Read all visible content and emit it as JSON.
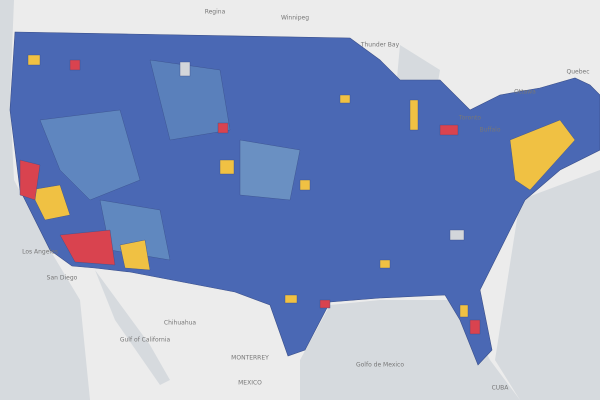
{
  "map": {
    "labels": [
      "Regina",
      "Winnipeg",
      "Thunder Bay",
      "Ottawa",
      "Quebec",
      "Toronto",
      "Buffalo",
      "Los Angeles",
      "San Diego",
      "Gulf of California",
      "Chihuahua",
      "MONTERREY",
      "MEXICO",
      "Golfo de Mexico",
      "CUBA"
    ]
  }
}
